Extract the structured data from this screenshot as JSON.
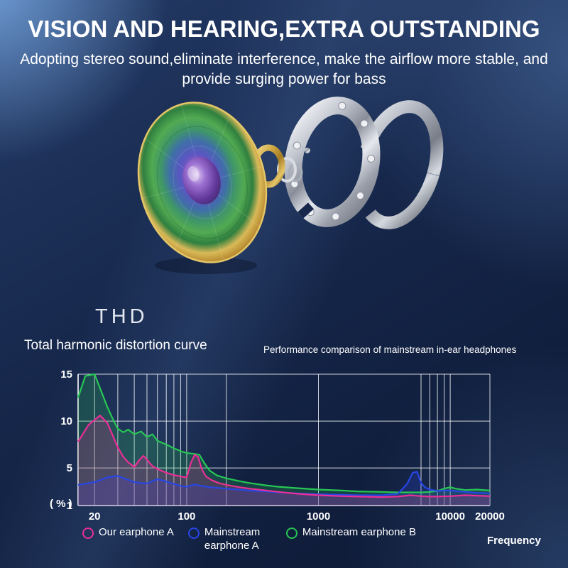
{
  "header": {
    "title": "VISION AND HEARING,EXTRA OUTSTANDING",
    "subtitle_line1": "Adopting stereo sound,eliminate interference, make the airflow more stable, and",
    "subtitle_line2": "provide surging power for bass"
  },
  "section": {
    "thd_label": "THD",
    "chart_caption": "Total harmonic distortion curve",
    "comparison_caption": "Performance comparison of mainstream in-ear headphones"
  },
  "chart_data": {
    "type": "line",
    "title": "Total harmonic distortion curve",
    "subtitle": "Performance comparison of mainstream in-ear headphones",
    "xlabel": "Frequency",
    "ylabel": "( % )",
    "x_scale": "log",
    "xlim": [
      15,
      20000
    ],
    "ylim": [
      1,
      15
    ],
    "x_ticks": [
      20,
      100,
      1000,
      10000,
      20000
    ],
    "y_ticks": [
      15,
      10,
      5,
      1
    ],
    "x_gridlines": [
      20,
      30,
      40,
      50,
      60,
      70,
      80,
      90,
      100,
      200,
      1000,
      6000,
      7000,
      8000,
      9000,
      10000,
      20000
    ],
    "y_gridlines": [
      5,
      10,
      15
    ],
    "grid": true,
    "legend_position": "bottom",
    "series": [
      {
        "id": "our-earphone-a",
        "name": "Our earphone A",
        "color": "#ea2f96",
        "points": [
          [
            15,
            7.8
          ],
          [
            18,
            9.6
          ],
          [
            22,
            10.6
          ],
          [
            25,
            9.8
          ],
          [
            28,
            8.2
          ],
          [
            30,
            7.2
          ],
          [
            33,
            6.2
          ],
          [
            36,
            5.6
          ],
          [
            40,
            5.1
          ],
          [
            44,
            5.9
          ],
          [
            47,
            6.3
          ],
          [
            50,
            5.9
          ],
          [
            55,
            5.2
          ],
          [
            60,
            4.9
          ],
          [
            70,
            4.5
          ],
          [
            80,
            4.25
          ],
          [
            90,
            4.1
          ],
          [
            100,
            4.0
          ],
          [
            108,
            5.6
          ],
          [
            115,
            6.4
          ],
          [
            122,
            6.2
          ],
          [
            130,
            4.9
          ],
          [
            140,
            4.1
          ],
          [
            155,
            3.7
          ],
          [
            175,
            3.4
          ],
          [
            200,
            3.2
          ],
          [
            250,
            2.95
          ],
          [
            300,
            2.8
          ],
          [
            400,
            2.6
          ],
          [
            500,
            2.45
          ],
          [
            700,
            2.25
          ],
          [
            1000,
            2.1
          ],
          [
            1500,
            2.0
          ],
          [
            2000,
            1.95
          ],
          [
            3000,
            1.9
          ],
          [
            4000,
            1.95
          ],
          [
            5000,
            2.1
          ],
          [
            6000,
            2.0
          ],
          [
            7000,
            1.95
          ],
          [
            8000,
            1.95
          ],
          [
            10000,
            2.0
          ],
          [
            13000,
            2.1
          ],
          [
            16000,
            2.05
          ],
          [
            20000,
            2.0
          ]
        ]
      },
      {
        "id": "mainstream-earphone-a",
        "name": "Mainstream earphone A",
        "color": "#2746e6",
        "points": [
          [
            15,
            3.2
          ],
          [
            20,
            3.5
          ],
          [
            25,
            4.0
          ],
          [
            30,
            4.15
          ],
          [
            35,
            3.8
          ],
          [
            40,
            3.5
          ],
          [
            45,
            3.4
          ],
          [
            50,
            3.35
          ],
          [
            55,
            3.6
          ],
          [
            60,
            3.8
          ],
          [
            65,
            3.7
          ],
          [
            70,
            3.55
          ],
          [
            80,
            3.3
          ],
          [
            90,
            3.1
          ],
          [
            100,
            3.0
          ],
          [
            115,
            3.25
          ],
          [
            130,
            3.1
          ],
          [
            150,
            2.95
          ],
          [
            200,
            2.8
          ],
          [
            300,
            2.6
          ],
          [
            400,
            2.5
          ],
          [
            500,
            2.4
          ],
          [
            700,
            2.3
          ],
          [
            1000,
            2.2
          ],
          [
            1500,
            2.15
          ],
          [
            2000,
            2.1
          ],
          [
            3000,
            2.1
          ],
          [
            4000,
            2.25
          ],
          [
            4700,
            3.3
          ],
          [
            5200,
            4.5
          ],
          [
            5600,
            4.6
          ],
          [
            6000,
            3.4
          ],
          [
            6500,
            2.9
          ],
          [
            7000,
            2.7
          ],
          [
            8000,
            2.55
          ],
          [
            9000,
            2.6
          ],
          [
            10000,
            2.6
          ],
          [
            13000,
            2.45
          ],
          [
            16000,
            2.35
          ],
          [
            20000,
            2.3
          ]
        ]
      },
      {
        "id": "mainstream-earphone-b",
        "name": "Mainstream earphone B",
        "color": "#27c654",
        "points": [
          [
            15,
            12.5
          ],
          [
            17,
            14.8
          ],
          [
            20,
            15
          ],
          [
            22,
            13.5
          ],
          [
            25,
            11.5
          ],
          [
            28,
            10.0
          ],
          [
            30,
            9.2
          ],
          [
            33,
            8.8
          ],
          [
            36,
            9.1
          ],
          [
            40,
            8.6
          ],
          [
            45,
            8.9
          ],
          [
            50,
            8.3
          ],
          [
            55,
            8.6
          ],
          [
            60,
            7.9
          ],
          [
            70,
            7.5
          ],
          [
            80,
            7.1
          ],
          [
            90,
            6.8
          ],
          [
            100,
            6.6
          ],
          [
            115,
            6.5
          ],
          [
            125,
            6.4
          ],
          [
            135,
            5.6
          ],
          [
            150,
            4.7
          ],
          [
            170,
            4.2
          ],
          [
            200,
            3.9
          ],
          [
            250,
            3.6
          ],
          [
            300,
            3.4
          ],
          [
            400,
            3.15
          ],
          [
            500,
            3.0
          ],
          [
            700,
            2.85
          ],
          [
            1000,
            2.7
          ],
          [
            1500,
            2.6
          ],
          [
            2000,
            2.5
          ],
          [
            3000,
            2.45
          ],
          [
            4000,
            2.4
          ],
          [
            5000,
            2.4
          ],
          [
            6000,
            2.4
          ],
          [
            7000,
            2.45
          ],
          [
            8000,
            2.55
          ],
          [
            9000,
            2.8
          ],
          [
            10000,
            2.95
          ],
          [
            11000,
            2.8
          ],
          [
            13000,
            2.65
          ],
          [
            16000,
            2.7
          ],
          [
            20000,
            2.6
          ]
        ]
      }
    ]
  },
  "colors": {
    "background": "#16274b",
    "text": "#ffffff",
    "grid": "#ffffff"
  }
}
